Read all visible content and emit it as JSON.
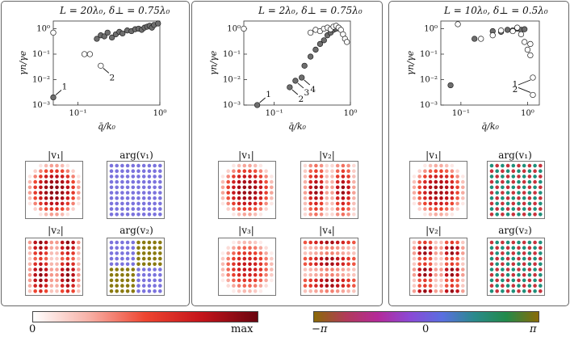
{
  "panels": [
    {
      "title": "L = 20λ₀, δ⊥ = 0.75λ₀",
      "ylabel": "γn/γe",
      "xlabel": "q̄/k₀",
      "yticks": [
        "10⁰",
        "10⁻¹",
        "10⁻²",
        "10⁻³"
      ],
      "xticks": [
        "10⁻¹",
        "10⁰"
      ],
      "annotations": [
        "1",
        "2"
      ],
      "matrix_labels": [
        "|v₁|",
        "arg(v₁)",
        "|v₂|",
        "arg(v₂)"
      ]
    },
    {
      "title": "L = 2λ₀, δ⊥ = 0.75λ₀",
      "ylabel": "γn/γe",
      "xlabel": "q̄/k₀",
      "yticks": [
        "10⁰",
        "10⁻¹",
        "10⁻²",
        "10⁻³"
      ],
      "xticks": [
        "10⁻¹",
        "10⁰"
      ],
      "annotations": [
        "1",
        "2",
        "3",
        "4"
      ],
      "matrix_labels": [
        "|v₁|",
        "|v₂|",
        "|v₃|",
        "|v₄|"
      ]
    },
    {
      "title": "L = 10λ₀, δ⊥ = 0.5λ₀",
      "ylabel": "γn/γe",
      "xlabel": "q̄/k₀",
      "yticks": [
        "10⁰",
        "10⁻¹",
        "10⁻²",
        "10⁻³"
      ],
      "xticks": [
        "10⁻¹",
        "10⁰"
      ],
      "annotations": [
        "2",
        "1"
      ],
      "matrix_labels": [
        "|v₁|",
        "arg(v₁)",
        "|v₂|",
        "arg(v₂)"
      ]
    }
  ],
  "colorbars": {
    "magnitude": {
      "min_label": "0",
      "max_label": "max"
    },
    "phase": {
      "min_label": "−π",
      "mid_label": "0",
      "max_label": "π"
    }
  },
  "colors": {
    "filled_marker": "#6e6e6e",
    "open_marker": "#ffffff",
    "phase_blue": "#7b73dd",
    "phase_olive": "#8a7a10",
    "phase_teal": "#1f8f7a",
    "phase_red": "#c8323c",
    "magnitude_max": "#8b0a14"
  },
  "chart_data": [
    {
      "type": "scatter",
      "title": "L = 20λ₀, δ⊥ = 0.75λ₀",
      "xlabel": "q̄/k₀",
      "ylabel": "γn/γe",
      "xscale": "log",
      "yscale": "log",
      "xlim": [
        0.05,
        1.0
      ],
      "ylim": [
        0.001,
        2.0
      ],
      "series": [
        {
          "marker": "filled",
          "points": [
            [
              0.05,
              0.002
            ],
            [
              0.17,
              0.4
            ],
            [
              0.19,
              0.55
            ],
            [
              0.21,
              0.5
            ],
            [
              0.23,
              0.7
            ],
            [
              0.26,
              0.45
            ],
            [
              0.29,
              0.6
            ],
            [
              0.32,
              0.75
            ],
            [
              0.35,
              0.65
            ],
            [
              0.4,
              0.85
            ],
            [
              0.45,
              0.8
            ],
            [
              0.5,
              0.95
            ],
            [
              0.55,
              1.0
            ],
            [
              0.6,
              0.9
            ],
            [
              0.65,
              1.1
            ],
            [
              0.7,
              1.2
            ],
            [
              0.75,
              1.3
            ],
            [
              0.8,
              1.1
            ],
            [
              0.85,
              1.4
            ],
            [
              0.95,
              1.6
            ]
          ]
        },
        {
          "marker": "open",
          "points": [
            [
              0.05,
              0.7
            ],
            [
              0.12,
              0.1
            ],
            [
              0.14,
              0.1
            ],
            [
              0.19,
              0.035
            ]
          ]
        }
      ],
      "annotations": [
        {
          "label": "1",
          "x": 0.05,
          "y": 0.002
        },
        {
          "label": "2",
          "x": 0.19,
          "y": 0.035
        }
      ]
    },
    {
      "type": "scatter",
      "title": "L = 2λ₀, δ⊥ = 0.75λ₀",
      "xlabel": "q̄/k₀",
      "ylabel": "γn/γe",
      "xscale": "log",
      "yscale": "log",
      "xlim": [
        0.04,
        1.0
      ],
      "ylim": [
        0.001,
        2.0
      ],
      "series": [
        {
          "marker": "filled",
          "points": [
            [
              0.06,
              0.001
            ],
            [
              0.16,
              0.005
            ],
            [
              0.19,
              0.009
            ],
            [
              0.23,
              0.012
            ],
            [
              0.25,
              0.035
            ],
            [
              0.3,
              0.08
            ],
            [
              0.35,
              0.15
            ],
            [
              0.4,
              0.25
            ],
            [
              0.45,
              0.35
            ],
            [
              0.5,
              0.55
            ],
            [
              0.55,
              0.7
            ],
            [
              0.6,
              0.9
            ],
            [
              0.65,
              1.0
            ]
          ]
        },
        {
          "marker": "open",
          "points": [
            [
              0.04,
              1.0
            ],
            [
              0.3,
              0.7
            ],
            [
              0.35,
              0.9
            ],
            [
              0.4,
              0.8
            ],
            [
              0.45,
              1.0
            ],
            [
              0.5,
              1.1
            ],
            [
              0.55,
              0.95
            ],
            [
              0.6,
              1.2
            ],
            [
              0.65,
              1.3
            ],
            [
              0.7,
              1.1
            ],
            [
              0.75,
              0.9
            ],
            [
              0.8,
              0.6
            ],
            [
              0.85,
              0.4
            ],
            [
              0.9,
              0.3
            ]
          ]
        }
      ],
      "annotations": [
        {
          "label": "1",
          "x": 0.06,
          "y": 0.001
        },
        {
          "label": "2",
          "x": 0.16,
          "y": 0.005
        },
        {
          "label": "3",
          "x": 0.19,
          "y": 0.009
        },
        {
          "label": "4",
          "x": 0.23,
          "y": 0.012
        }
      ]
    },
    {
      "type": "scatter",
      "title": "L = 10λ₀, δ⊥ = 0.5λ₀",
      "xlabel": "q̄/k₀",
      "ylabel": "γn/γe",
      "xscale": "log",
      "yscale": "log",
      "xlim": [
        0.05,
        1.5
      ],
      "ylim": [
        0.001,
        2.0
      ],
      "series": [
        {
          "marker": "filled",
          "points": [
            [
              0.07,
              0.006
            ],
            [
              0.16,
              0.4
            ],
            [
              0.3,
              0.8
            ],
            [
              0.4,
              0.75
            ],
            [
              0.5,
              0.9
            ],
            [
              0.6,
              0.85
            ],
            [
              0.7,
              1.0
            ],
            [
              0.8,
              0.9
            ],
            [
              0.9,
              0.95
            ]
          ]
        },
        {
          "marker": "open",
          "points": [
            [
              0.09,
              1.5
            ],
            [
              0.2,
              0.4
            ],
            [
              0.3,
              0.55
            ],
            [
              0.4,
              0.85
            ],
            [
              0.6,
              0.8
            ],
            [
              0.7,
              1.1
            ],
            [
              0.8,
              0.6
            ],
            [
              0.9,
              0.3
            ],
            [
              1.0,
              0.15
            ],
            [
              1.1,
              0.25
            ],
            [
              1.1,
              0.09
            ],
            [
              1.2,
              0.012
            ],
            [
              1.2,
              0.0025
            ]
          ]
        }
      ],
      "annotations": [
        {
          "label": "2",
          "x": 1.2,
          "y": 0.012
        },
        {
          "label": "1",
          "x": 1.2,
          "y": 0.0025
        }
      ]
    }
  ]
}
